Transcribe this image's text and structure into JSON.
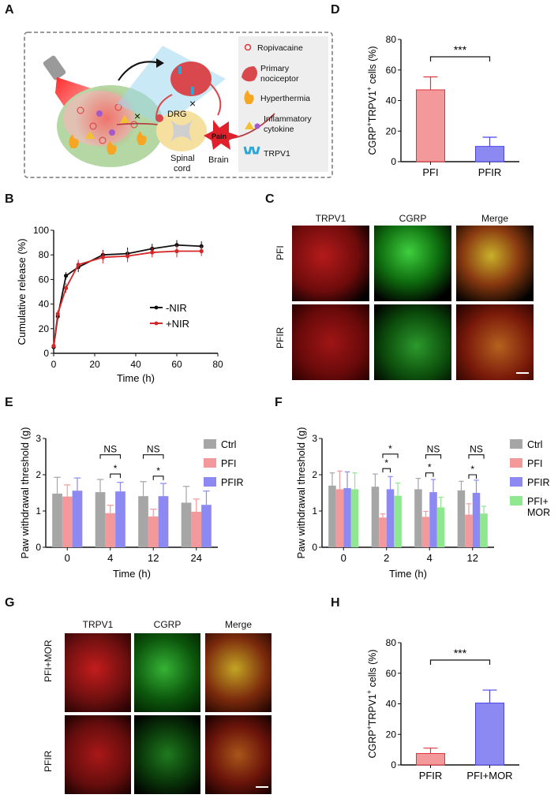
{
  "figure": {
    "panel_labels": [
      "A",
      "B",
      "C",
      "D",
      "E",
      "F",
      "G",
      "H"
    ]
  },
  "panel_a": {
    "legend": {
      "ropivacaine": "Ropivacaine",
      "primary_nociceptor_line1": "Primary",
      "primary_nociceptor_line2": "nociceptor",
      "hyperthermia": "Hyperthermia",
      "cytokine_line1": "Inflammatory",
      "cytokine_line2": "cytokine",
      "trpv1": "TRPV1"
    },
    "labels": {
      "drg": "DRG",
      "spinal_line1": "Spinal",
      "spinal_line2": "cord",
      "brain": "Brain",
      "pain": "Pain"
    },
    "colors": {
      "red": "#e0343a",
      "nociceptor": "#d9484d",
      "trpv1": "#2aa7d8",
      "cloud": "#b5d7a3",
      "box_border": "#777777"
    }
  },
  "panel_c": {
    "columns": [
      "TRPV1",
      "CGRP",
      "Merge"
    ],
    "rows": [
      "PFI",
      "PFIR"
    ],
    "column_colors": [
      "#d62728",
      "#1fa33a",
      "#111111"
    ]
  },
  "panel_g": {
    "columns": [
      "TRPV1",
      "CGRP",
      "Merge"
    ],
    "rows": [
      "PFI+MOR",
      "PFIR"
    ],
    "column_colors": [
      "#d62728",
      "#1fa33a",
      "#111111"
    ]
  },
  "chart_data": [
    {
      "id": "B",
      "type": "line",
      "xlabel": "Time (h)",
      "ylabel": "Cumulative release (%)",
      "xlim": [
        0,
        80
      ],
      "ylim": [
        0,
        100
      ],
      "xticks": [
        0,
        20,
        40,
        60,
        80
      ],
      "yticks": [
        0,
        20,
        40,
        60,
        80,
        100
      ],
      "legend_position": "right",
      "series": [
        {
          "name": "-NIR",
          "color": "#111111",
          "x": [
            0,
            2,
            6,
            12,
            24,
            36,
            48,
            60,
            72
          ],
          "y": [
            5,
            30,
            63,
            70,
            80,
            81,
            85,
            88,
            87
          ],
          "err": [
            2,
            3,
            3,
            4,
            4,
            5,
            4,
            4,
            4
          ]
        },
        {
          "name": "+NIR",
          "color": "#d62728",
          "x": [
            0,
            2,
            6,
            12,
            24,
            36,
            48,
            60,
            72
          ],
          "y": [
            6,
            32,
            53,
            72,
            78,
            79,
            82,
            83,
            83
          ],
          "err": [
            2,
            3,
            4,
            4,
            5,
            5,
            4,
            5,
            4
          ]
        }
      ]
    },
    {
      "id": "D",
      "type": "bar",
      "ylabel": "CGRP+TRPV1+ cells (%)",
      "categories": [
        "PFI",
        "PFIR"
      ],
      "values": [
        47,
        10
      ],
      "errors": [
        8.5,
        6
      ],
      "colors": [
        "#f4999b",
        "#8c89f2"
      ],
      "edge_colors": [
        "#e0343a",
        "#4b47e6"
      ],
      "ylim": [
        0,
        80
      ],
      "yticks": [
        0,
        20,
        40,
        60,
        80
      ],
      "significance": "***"
    },
    {
      "id": "E",
      "type": "bar",
      "ylabel": "Paw withdrawal threshold (g)",
      "xlabel": "Time (h)",
      "categories": [
        "0",
        "4",
        "12",
        "24"
      ],
      "ylim": [
        0,
        3
      ],
      "yticks": [
        0,
        1,
        2,
        3
      ],
      "series": [
        {
          "name": "Ctrl",
          "color": "#a6a6a6",
          "values": [
            1.48,
            1.52,
            1.41,
            1.23
          ],
          "errors": [
            0.45,
            0.35,
            0.4,
            0.45
          ]
        },
        {
          "name": "PFI",
          "color": "#f4999b",
          "values": [
            1.4,
            0.94,
            0.85,
            0.98
          ],
          "errors": [
            0.32,
            0.22,
            0.2,
            0.35
          ]
        },
        {
          "name": "PFIR",
          "color": "#8c89f2",
          "values": [
            1.56,
            1.54,
            1.41,
            1.17
          ],
          "errors": [
            0.35,
            0.25,
            0.35,
            0.38
          ]
        }
      ],
      "annotations": [
        {
          "group": 1,
          "label": "NS",
          "pair": [
            0,
            2
          ]
        },
        {
          "group": 1,
          "label": "*",
          "pair": [
            1,
            2
          ]
        },
        {
          "group": 2,
          "label": "NS",
          "pair": [
            0,
            2
          ]
        },
        {
          "group": 2,
          "label": "*",
          "pair": [
            1,
            2
          ]
        }
      ]
    },
    {
      "id": "F",
      "type": "bar",
      "ylabel": "Paw withdrawal threshold (g)",
      "xlabel": "Time (h)",
      "categories": [
        "0",
        "2",
        "4",
        "12"
      ],
      "ylim": [
        0,
        3
      ],
      "yticks": [
        0,
        1,
        2,
        3
      ],
      "series": [
        {
          "name": "Ctrl",
          "color": "#a6a6a6",
          "values": [
            1.7,
            1.67,
            1.6,
            1.57
          ],
          "errors": [
            0.35,
            0.35,
            0.3,
            0.25
          ]
        },
        {
          "name": "PFI",
          "color": "#f4999b",
          "values": [
            1.6,
            0.82,
            0.84,
            0.9
          ],
          "errors": [
            0.5,
            0.1,
            0.15,
            0.3
          ]
        },
        {
          "name": "PFIR",
          "color": "#8c89f2",
          "values": [
            1.63,
            1.6,
            1.52,
            1.5
          ],
          "errors": [
            0.45,
            0.35,
            0.35,
            0.35
          ]
        },
        {
          "name": "PFI+\nMOR",
          "color": "#8fe88f",
          "values": [
            1.6,
            1.42,
            1.1,
            0.93
          ],
          "errors": [
            0.45,
            0.35,
            0.28,
            0.2
          ]
        }
      ],
      "annotations": [
        {
          "group": 1,
          "label": "*",
          "pair": [
            1,
            3
          ]
        },
        {
          "group": 1,
          "label": "*",
          "pair": [
            1,
            2
          ]
        },
        {
          "group": 2,
          "label": "NS",
          "pair": [
            1,
            3
          ]
        },
        {
          "group": 2,
          "label": "*",
          "pair": [
            1,
            2
          ]
        },
        {
          "group": 3,
          "label": "NS",
          "pair": [
            1,
            3
          ]
        },
        {
          "group": 3,
          "label": "*",
          "pair": [
            1,
            2
          ]
        }
      ]
    },
    {
      "id": "H",
      "type": "bar",
      "ylabel": "CGRP+TRPV1+ cells (%)",
      "categories": [
        "PFIR",
        "PFI+MOR"
      ],
      "values": [
        7.5,
        40.5
      ],
      "errors": [
        3.5,
        8.5
      ],
      "colors": [
        "#f4999b",
        "#8c89f2"
      ],
      "edge_colors": [
        "#e0343a",
        "#4b47e6"
      ],
      "ylim": [
        0,
        80
      ],
      "yticks": [
        0,
        20,
        40,
        60,
        80
      ],
      "significance": "***"
    }
  ]
}
